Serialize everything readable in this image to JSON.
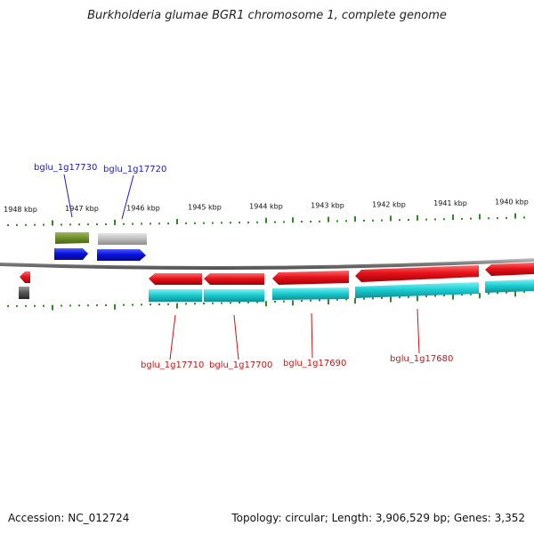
{
  "title": "Burkholderia glumae BGR1 chromosome 1, complete genome",
  "footer": {
    "accession": "Accession: NC_012724",
    "summary": "Topology: circular; Length: 3,906,529 bp; Genes: 3,352"
  },
  "ticks": [
    {
      "kbp": 1948,
      "label": "1948 kbp"
    },
    {
      "kbp": 1947,
      "label": "1947 kbp"
    },
    {
      "kbp": 1946,
      "label": "1946 kbp"
    },
    {
      "kbp": 1945,
      "label": "1945 kbp"
    },
    {
      "kbp": 1944,
      "label": "1944 kbp"
    },
    {
      "kbp": 1943,
      "label": "1943 kbp"
    },
    {
      "kbp": 1942,
      "label": "1942 kbp"
    },
    {
      "kbp": 1941,
      "label": "1941 kbp"
    },
    {
      "kbp": 1940,
      "label": "1940 kbp"
    }
  ],
  "gene_labels": {
    "forward": [
      "bglu_1g17730",
      "bglu_1g17720"
    ],
    "reverse": [
      "bglu_1g17710",
      "bglu_1g17700",
      "bglu_1g17690",
      "bglu_1g17680"
    ]
  },
  "colors": {
    "forward_gene": "#0a12e0",
    "reverse_gene": "#e8131b",
    "cds_cyan": "#1ccfd4",
    "rna_olive": "#6f8f2a",
    "pseudo_grey": "#bdbdbd",
    "tick_green": "#2e8b22",
    "backbone": "#8a8a8a",
    "label_blue": "#1b1bb0",
    "label_red": "#c01818"
  }
}
